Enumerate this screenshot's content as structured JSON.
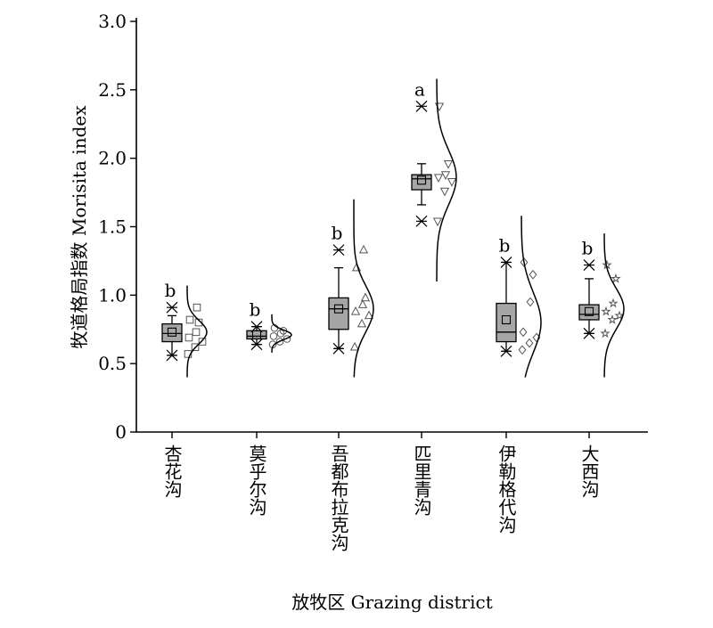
{
  "chart_data": {
    "type": "box",
    "ylabel": "牧道格局指数 Morisita index",
    "xlabel": "放牧区 Grazing district",
    "ylim": [
      0,
      3.0
    ],
    "yticks": [
      "0",
      "0.5",
      "1.0",
      "1.5",
      "2.0",
      "2.5",
      "3.0"
    ],
    "categories": [
      "杏花沟",
      "莫乎尔沟",
      "吾都布拉克沟",
      "匹里青沟",
      "伊勒格代沟",
      "大西沟"
    ],
    "box_color": "#a6a6a6",
    "groups": [
      {
        "category": "杏花沟",
        "letter": "b",
        "marker": "square",
        "whisker_low": 0.56,
        "q1": 0.66,
        "median": 0.72,
        "q3": 0.79,
        "whisker_high": 0.85,
        "mean": 0.73,
        "outlier_low": 0.56,
        "outlier_high": 0.91,
        "points": [
          0.57,
          0.62,
          0.66,
          0.69,
          0.73,
          0.8,
          0.82,
          0.91
        ],
        "density": {
          "min": 0.4,
          "max": 1.07,
          "peak": 0.73,
          "spread": 0.085,
          "width": 1.0
        }
      },
      {
        "category": "莫乎尔沟",
        "letter": "b",
        "marker": "circle",
        "whisker_low": 0.64,
        "q1": 0.68,
        "median": 0.7,
        "q3": 0.74,
        "whisker_high": 0.77,
        "mean": 0.71,
        "outlier_low": 0.64,
        "outlier_high": 0.77,
        "points": [
          0.64,
          0.66,
          0.68,
          0.7,
          0.72,
          0.74,
          0.76
        ],
        "density": {
          "min": 0.58,
          "max": 0.86,
          "peak": 0.71,
          "spread": 0.035,
          "width": 1.0
        }
      },
      {
        "category": "吾都布拉克沟",
        "letter": "b",
        "marker": "triangle-up",
        "whisker_low": 0.61,
        "q1": 0.75,
        "median": 0.9,
        "q3": 0.98,
        "whisker_high": 1.2,
        "mean": 0.9,
        "outlier_low": 0.61,
        "outlier_high": 1.33,
        "points": [
          0.62,
          0.79,
          0.85,
          0.88,
          0.93,
          0.98,
          1.2,
          1.33
        ],
        "density": {
          "min": 0.4,
          "max": 1.7,
          "peak": 0.9,
          "spread": 0.17,
          "width": 1.0
        }
      },
      {
        "category": "匹里青沟",
        "letter": "a",
        "marker": "triangle-down",
        "whisker_low": 1.66,
        "q1": 1.77,
        "median": 1.85,
        "q3": 1.88,
        "whisker_high": 1.96,
        "mean": 1.84,
        "outlier_low": 1.54,
        "outlier_high": 2.38,
        "points": [
          1.54,
          1.76,
          1.83,
          1.86,
          1.88,
          1.96,
          2.38
        ],
        "density": {
          "min": 1.1,
          "max": 2.58,
          "peak": 1.86,
          "spread": 0.2,
          "width": 1.0
        }
      },
      {
        "category": "伊勒格代沟",
        "letter": "b",
        "marker": "diamond",
        "whisker_low": 0.59,
        "q1": 0.66,
        "median": 0.73,
        "q3": 0.94,
        "whisker_high": 1.24,
        "mean": 0.82,
        "outlier_low": 0.59,
        "outlier_high": 1.24,
        "points": [
          0.6,
          0.65,
          0.69,
          0.73,
          0.95,
          1.15,
          1.24
        ],
        "density": {
          "min": 0.4,
          "max": 1.58,
          "peak": 0.8,
          "spread": 0.22,
          "width": 1.0
        }
      },
      {
        "category": "大西沟",
        "letter": "b",
        "marker": "star",
        "whisker_low": 0.72,
        "q1": 0.82,
        "median": 0.86,
        "q3": 0.93,
        "whisker_high": 1.12,
        "mean": 0.88,
        "outlier_low": 0.72,
        "outlier_high": 1.22,
        "points": [
          0.72,
          0.82,
          0.85,
          0.88,
          0.94,
          1.12,
          1.22
        ],
        "density": {
          "min": 0.4,
          "max": 1.45,
          "peak": 0.9,
          "spread": 0.15,
          "width": 1.0
        }
      }
    ]
  }
}
